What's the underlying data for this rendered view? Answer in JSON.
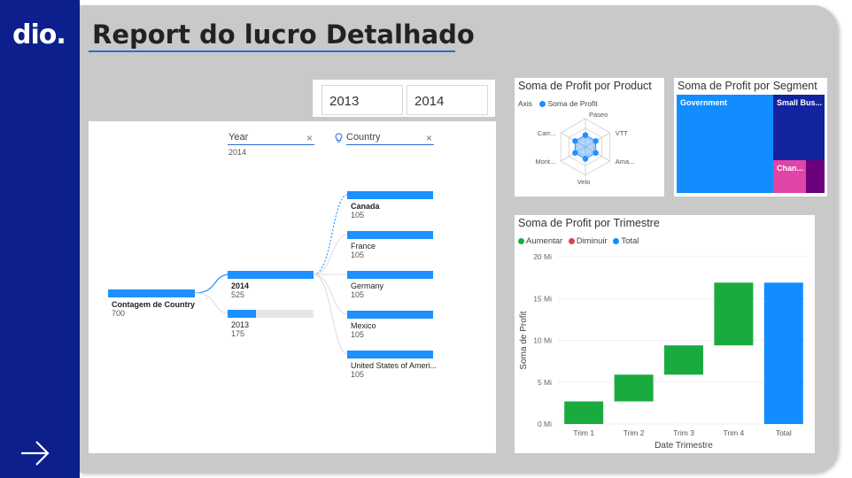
{
  "brand": {
    "logo_text": "dio."
  },
  "report": {
    "title": "Report do lucro Detalhado"
  },
  "slicer": {
    "options": [
      "2013",
      "2014"
    ]
  },
  "decomposition": {
    "year_header": "Year",
    "year_selected": "2014",
    "country_header": "Country",
    "root": {
      "label": "Contagem de Country",
      "value": "700"
    },
    "years": [
      {
        "label": "2014",
        "value": "525",
        "fraction": 1.0,
        "selected": true
      },
      {
        "label": "2013",
        "value": "175",
        "fraction": 0.33,
        "selected": false
      }
    ],
    "countries": [
      {
        "label": "Canada",
        "value": "105",
        "fraction": 1.0,
        "selected": true
      },
      {
        "label": "France",
        "value": "105",
        "fraction": 1.0,
        "selected": false
      },
      {
        "label": "Germany",
        "value": "105",
        "fraction": 1.0,
        "selected": false
      },
      {
        "label": "Mexico",
        "value": "105",
        "fraction": 1.0,
        "selected": false
      },
      {
        "label": "United States of Ameri...",
        "value": "105",
        "fraction": 1.0,
        "selected": false
      }
    ]
  },
  "radar": {
    "title": "Soma de Profit por Product",
    "legend_axis": "Axis",
    "legend_series": "Soma de Profit",
    "axes": [
      "Paseo",
      "VTT",
      "Ama...",
      "Velo",
      "Mont...",
      "Carr..."
    ],
    "color": "#1e90ff"
  },
  "treemap": {
    "title": "Soma de Profit por Segment",
    "tiles": [
      {
        "label": "Government",
        "color": "#118dff"
      },
      {
        "label": "Small Bus...",
        "color": "#12239e"
      },
      {
        "label": "Chan...",
        "color": "#e044a7"
      },
      {
        "label": "",
        "color": "#6b007b"
      }
    ]
  },
  "chart_data": {
    "type": "waterfall",
    "title": "Soma de Profit por Trimestre",
    "xlabel": "Date Trimestre",
    "ylabel": "Soma de Profit",
    "legend": [
      {
        "name": "Aumentar",
        "color": "#1aab40"
      },
      {
        "name": "Diminuir",
        "color": "#d64554"
      },
      {
        "name": "Total",
        "color": "#118dff"
      }
    ],
    "categories": [
      "Trim 1",
      "Trim 2",
      "Trim 3",
      "Trim 4",
      "Total"
    ],
    "starts": [
      0,
      2.7,
      5.9,
      9.4,
      0
    ],
    "ends": [
      2.7,
      5.9,
      9.4,
      16.9,
      16.9
    ],
    "kinds": [
      "Aumentar",
      "Aumentar",
      "Aumentar",
      "Aumentar",
      "Total"
    ],
    "yticks": [
      0,
      5,
      10,
      15,
      20
    ],
    "ytick_labels": [
      "0 Mi",
      "5 Mi",
      "10 Mi",
      "15 Mi",
      "20 Mi"
    ],
    "ylim": [
      0,
      20
    ],
    "grid": true,
    "legend_position": "top-left"
  }
}
